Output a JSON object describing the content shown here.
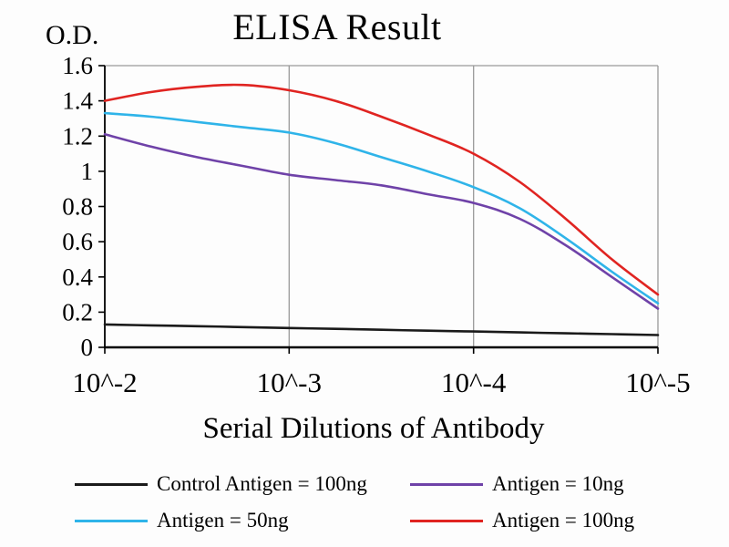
{
  "chart_data": {
    "type": "line",
    "title": "ELISA Result",
    "ylabel": "O.D.",
    "xlabel": "Serial Dilutions of Antibody",
    "ylim": [
      0,
      1.6
    ],
    "x_scale_note": "log dilution, 10^-2 to 10^-5, evenly spaced decades",
    "x_tick_labels": [
      "10^-2",
      "10^-3",
      "10^-4",
      "10^-5"
    ],
    "x_tick_decades": [
      0,
      1,
      2,
      3
    ],
    "y_tick_values": [
      0,
      0.2,
      0.4,
      0.6,
      0.8,
      1,
      1.2,
      1.4,
      1.6
    ],
    "y_tick_labels": [
      "0",
      "0.2",
      "0.4",
      "0.6",
      "0.8",
      "1",
      "1.2",
      "1.4",
      "1.6"
    ],
    "x_decades": [
      0,
      0.25,
      0.5,
      0.75,
      1,
      1.25,
      1.5,
      1.75,
      2,
      2.25,
      2.5,
      2.75,
      3
    ],
    "series": [
      {
        "name": "Control Antigen = 100ng",
        "color": "#1a1a1a",
        "values": [
          0.13,
          0.125,
          0.12,
          0.115,
          0.11,
          0.105,
          0.1,
          0.095,
          0.09,
          0.085,
          0.08,
          0.075,
          0.07
        ]
      },
      {
        "name": "Antigen = 10ng",
        "color": "#6f42a8",
        "values": [
          1.21,
          1.14,
          1.08,
          1.03,
          0.98,
          0.95,
          0.92,
          0.87,
          0.82,
          0.73,
          0.58,
          0.4,
          0.22
        ]
      },
      {
        "name": "Antigen = 50ng",
        "color": "#2fb4e9",
        "values": [
          1.33,
          1.31,
          1.28,
          1.25,
          1.22,
          1.16,
          1.08,
          1.0,
          0.91,
          0.79,
          0.62,
          0.43,
          0.25
        ]
      },
      {
        "name": "Antigen = 100ng",
        "color": "#e02421",
        "values": [
          1.4,
          1.45,
          1.48,
          1.49,
          1.46,
          1.4,
          1.31,
          1.21,
          1.1,
          0.94,
          0.73,
          0.5,
          0.3
        ]
      }
    ],
    "legend": [
      {
        "label": "Control Antigen = 100ng",
        "color": "#1a1a1a"
      },
      {
        "label": "Antigen = 10ng",
        "color": "#6f42a8"
      },
      {
        "label": "Antigen = 50ng",
        "color": "#2fb4e9"
      },
      {
        "label": "Antigen = 100ng",
        "color": "#e02421"
      }
    ],
    "grid": {
      "color": "#9a9a9a",
      "vertical_at_decades": [
        1,
        2,
        3
      ],
      "top_border": true
    },
    "axis_color": "#000000"
  }
}
